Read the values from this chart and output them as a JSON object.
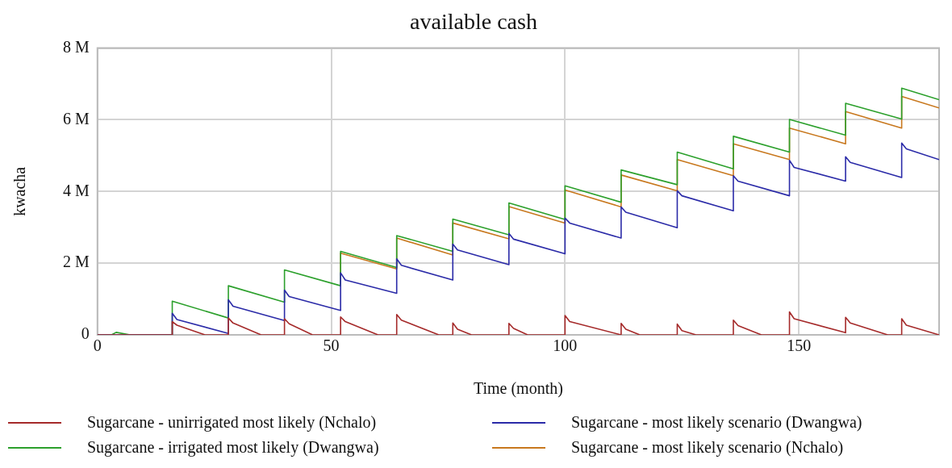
{
  "chart_data": {
    "type": "line",
    "title": "available cash",
    "xlabel": "Time (month)",
    "ylabel": "kwacha",
    "xlim": [
      0,
      180
    ],
    "xticks": [
      0,
      50,
      100,
      150
    ],
    "ylim": [
      0,
      8000000
    ],
    "yticks": [
      {
        "value": 0,
        "label": "0"
      },
      {
        "value": 2000000,
        "label": "2 M"
      },
      {
        "value": 4000000,
        "label": "4 M"
      },
      {
        "value": 6000000,
        "label": "6 M"
      },
      {
        "value": 8000000,
        "label": "8 M"
      }
    ],
    "grid": true,
    "legend": "bottom",
    "marker": "none",
    "line_style": "solid",
    "series": [
      {
        "name": "Sugarcane - unirrigated most likely (Nchalo)",
        "color": "#a52a2a",
        "x": [
          0,
          16,
          16,
          17,
          23,
          28,
          28,
          29,
          35,
          40,
          40,
          41,
          46,
          52,
          52,
          53,
          60,
          64,
          64,
          65,
          73,
          76,
          76,
          77,
          80,
          88,
          88,
          89,
          92,
          100,
          100,
          101,
          112,
          112,
          113,
          116,
          124,
          124,
          125,
          128,
          136,
          136,
          137,
          142,
          148,
          148,
          149,
          160,
          160,
          161,
          169,
          172,
          172,
          173,
          180
        ],
        "values": [
          0,
          0,
          370000,
          270000,
          0,
          0,
          470000,
          330000,
          0,
          0,
          450000,
          310000,
          0,
          0,
          500000,
          370000,
          0,
          0,
          570000,
          410000,
          0,
          0,
          330000,
          160000,
          0,
          0,
          320000,
          180000,
          0,
          0,
          540000,
          370000,
          0,
          320000,
          160000,
          0,
          0,
          300000,
          120000,
          0,
          0,
          410000,
          260000,
          0,
          0,
          640000,
          450000,
          60000,
          490000,
          330000,
          0,
          0,
          450000,
          270000,
          0
        ]
      },
      {
        "name": "Sugarcane - most likely scenario (Dwangwa)",
        "color": "#2b2ba8",
        "x": [
          0,
          16,
          16,
          17,
          28,
          28,
          29,
          40,
          40,
          41,
          52,
          52,
          53,
          64,
          64,
          65,
          76,
          76,
          77,
          88,
          88,
          89,
          100,
          100,
          101,
          112,
          112,
          113,
          124,
          124,
          125,
          136,
          136,
          137,
          148,
          148,
          149,
          160,
          160,
          161,
          172,
          172,
          173,
          180
        ],
        "values": [
          0,
          0,
          600000,
          430000,
          40000,
          980000,
          800000,
          400000,
          1250000,
          1070000,
          680000,
          1730000,
          1530000,
          1160000,
          2120000,
          1940000,
          1530000,
          2530000,
          2370000,
          1960000,
          2830000,
          2670000,
          2260000,
          3260000,
          3120000,
          2700000,
          3570000,
          3420000,
          2990000,
          4020000,
          3880000,
          3460000,
          4440000,
          4290000,
          3880000,
          4870000,
          4670000,
          4290000,
          4970000,
          4810000,
          4390000,
          5350000,
          5190000,
          4890000
        ]
      },
      {
        "name": "Sugarcane - irrigated most likely (Dwangwa)",
        "color": "#2ca02c",
        "x": [
          0,
          3,
          4,
          7,
          16,
          16,
          28,
          28,
          40,
          40,
          52,
          52,
          64,
          64,
          76,
          76,
          88,
          88,
          100,
          100,
          112,
          112,
          124,
          124,
          136,
          136,
          148,
          148,
          160,
          160,
          172,
          172,
          180
        ],
        "values": [
          0,
          0,
          70000,
          0,
          0,
          940000,
          470000,
          1370000,
          910000,
          1810000,
          1370000,
          2330000,
          1880000,
          2770000,
          2330000,
          3230000,
          2790000,
          3680000,
          3220000,
          4160000,
          3700000,
          4600000,
          4190000,
          5100000,
          4630000,
          5540000,
          5100000,
          6010000,
          5570000,
          6460000,
          6020000,
          6880000,
          6560000
        ]
      },
      {
        "name": "Sugarcane - most likely scenario (Nchalo)",
        "color": "#c8781e",
        "x": [
          52,
          52,
          64,
          64,
          76,
          76,
          88,
          88,
          100,
          100,
          112,
          112,
          124,
          124,
          136,
          136,
          148,
          148,
          160,
          160,
          172,
          172,
          180
        ],
        "values": [
          1370000,
          2280000,
          1840000,
          2700000,
          2230000,
          3120000,
          2680000,
          3580000,
          3120000,
          4040000,
          3570000,
          4460000,
          4020000,
          4890000,
          4440000,
          5330000,
          4890000,
          5770000,
          5330000,
          6230000,
          5770000,
          6650000,
          6330000
        ]
      }
    ]
  }
}
